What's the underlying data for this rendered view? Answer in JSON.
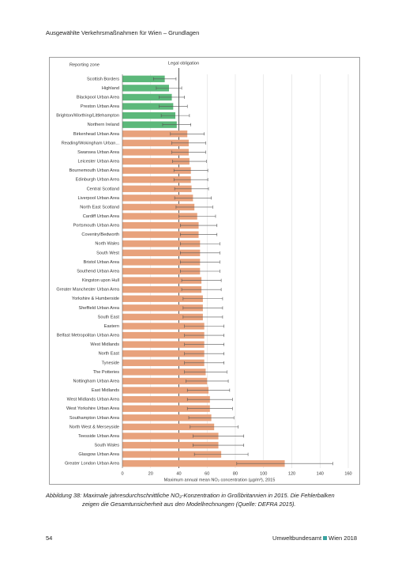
{
  "header": {
    "title": "Ausgewählte Verkehrsmaßnahmen für Wien – Grundlagen"
  },
  "chart_data": {
    "type": "hbar",
    "category_header": "Reporting zone",
    "x_label": "Maximum annual mean NO₂ concentration (µg/m³), 2015",
    "reference_line": {
      "value": 40,
      "label": "Legal obligation"
    },
    "categories": [
      "Scottish Borders",
      "Highland",
      "Blackpool Urban Area",
      "Preston Urban Area",
      "Brighton/Worthing/Littlehampton",
      "Northern Ireland",
      "Birkenhead Urban Area",
      "Reading/Wokingham Urban...",
      "Swansea Urban Area",
      "Leicester Urban Area",
      "Bournemouth Urban Area",
      "Edinburgh Urban Area",
      "Central Scotland",
      "Liverpool Urban Area",
      "North East Scotland",
      "Cardiff Urban Area",
      "Portsmouth Urban Area",
      "Coventry/Bedworth",
      "North Wales",
      "South West",
      "Bristol Urban Area",
      "Southend Urban Area",
      "Kingston upon Hull",
      "Greater Manchester Urban Area",
      "Yorkshire & Humberside",
      "Sheffield Urban Area",
      "South East",
      "Eastern",
      "Belfast Metropolitan Urban Area",
      "West Midlands",
      "North East",
      "Tyneside",
      "The Potteries",
      "Nottingham Urban Area",
      "East Midlands",
      "West Midlands Urban Area",
      "West Yorkshire Urban Area",
      "Southampton Urban Area",
      "North West & Merseyside",
      "Teesside Urban Area",
      "South Wales",
      "Glasgow Urban Area",
      "Greater London Urban Area"
    ],
    "values": [
      30,
      33,
      35,
      36,
      37.5,
      38.5,
      46,
      47,
      47,
      47.5,
      48.5,
      48.5,
      49,
      50,
      51,
      53,
      54,
      54,
      55,
      55,
      55,
      55,
      56,
      56,
      57,
      57,
      57,
      58,
      58,
      58,
      58,
      58,
      59,
      60,
      61,
      62,
      62,
      63,
      65,
      68,
      68,
      70,
      115
    ],
    "errors": [
      8,
      9,
      9,
      10,
      10,
      10,
      12,
      12,
      12,
      12,
      12,
      12,
      12,
      13,
      13,
      13,
      13,
      13,
      14,
      14,
      14,
      14,
      14,
      14,
      14,
      14,
      14,
      14,
      14,
      14,
      14,
      14,
      15,
      15,
      15,
      16,
      16,
      16,
      17,
      18,
      18,
      19,
      34
    ],
    "colors": [
      "#5cb87a",
      "#5cb87a",
      "#5cb87a",
      "#5cb87a",
      "#5cb87a",
      "#5cb87a",
      "#e8a27c",
      "#e8a27c",
      "#e8a27c",
      "#e8a27c",
      "#e8a27c",
      "#e8a27c",
      "#e8a27c",
      "#e8a27c",
      "#e8a27c",
      "#e8a27c",
      "#e8a27c",
      "#e8a27c",
      "#e8a27c",
      "#e8a27c",
      "#e8a27c",
      "#e8a27c",
      "#e8a27c",
      "#e8a27c",
      "#e8a27c",
      "#e8a27c",
      "#e8a27c",
      "#e8a27c",
      "#e8a27c",
      "#e8a27c",
      "#e8a27c",
      "#e8a27c",
      "#e8a27c",
      "#e8a27c",
      "#e8a27c",
      "#e8a27c",
      "#e8a27c",
      "#e8a27c",
      "#e8a27c",
      "#e8a27c",
      "#e8a27c",
      "#e8a27c",
      "#e8a27c"
    ],
    "xlim": [
      0,
      160
    ],
    "xticks": [
      0,
      20,
      40,
      60,
      80,
      100,
      120,
      140,
      160
    ],
    "grid": true
  },
  "caption": [
    "Abbildung 38: Maximale jahresdurchschnittliche NO₂-Konzentration in Großbritannien in 2015. Die Fehlerbalken",
    "zeigen die Gesamtunsicherheit aus den Modellrechnungen (Quelle: DEFRA 2015)."
  ],
  "footer": {
    "page": "54",
    "publisher": "Umweltbundesamt",
    "place": "Wien 2018"
  }
}
